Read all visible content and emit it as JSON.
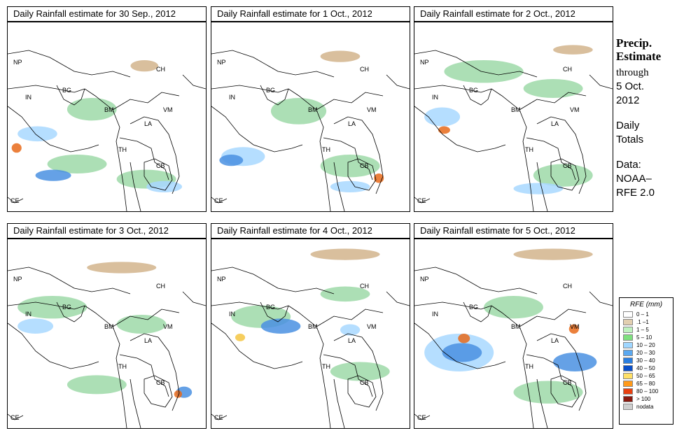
{
  "panels": [
    {
      "title": "Daily Rainfall estimate for  30 Sep., 2012",
      "blobs": [
        [
          "#a8d8ff",
          0.05,
          0.55,
          0.2,
          0.08
        ],
        [
          "#9ed9a8",
          0.3,
          0.4,
          0.25,
          0.12
        ],
        [
          "#d2b48c",
          0.62,
          0.2,
          0.14,
          0.06
        ],
        [
          "#9ed9a8",
          0.2,
          0.7,
          0.3,
          0.1
        ],
        [
          "#4a90e2",
          0.14,
          0.78,
          0.18,
          0.06
        ],
        [
          "#e86a1a",
          0.02,
          0.64,
          0.05,
          0.05
        ],
        [
          "#9ed9a8",
          0.55,
          0.78,
          0.3,
          0.1
        ],
        [
          "#a8d8ff",
          0.7,
          0.84,
          0.18,
          0.06
        ]
      ]
    },
    {
      "title": "Daily Rainfall estimate for  1 Oct., 2012",
      "blobs": [
        [
          "#a8d8ff",
          0.05,
          0.66,
          0.22,
          0.1
        ],
        [
          "#9ed9a8",
          0.3,
          0.4,
          0.28,
          0.14
        ],
        [
          "#d2b48c",
          0.55,
          0.15,
          0.2,
          0.06
        ],
        [
          "#9ed9a8",
          0.55,
          0.7,
          0.3,
          0.12
        ],
        [
          "#4a90e2",
          0.04,
          0.7,
          0.12,
          0.06
        ],
        [
          "#e86a1a",
          0.82,
          0.8,
          0.05,
          0.05
        ],
        [
          "#a8d8ff",
          0.6,
          0.84,
          0.2,
          0.06
        ]
      ]
    },
    {
      "title": "Daily Rainfall estimate for  2 Oct., 2012",
      "blobs": [
        [
          "#9ed9a8",
          0.15,
          0.2,
          0.4,
          0.12
        ],
        [
          "#a8d8ff",
          0.05,
          0.45,
          0.18,
          0.1
        ],
        [
          "#e86a1a",
          0.12,
          0.55,
          0.06,
          0.04
        ],
        [
          "#9ed9a8",
          0.55,
          0.3,
          0.3,
          0.1
        ],
        [
          "#d2b48c",
          0.7,
          0.12,
          0.2,
          0.05
        ],
        [
          "#9ed9a8",
          0.6,
          0.75,
          0.3,
          0.12
        ],
        [
          "#a8d8ff",
          0.5,
          0.85,
          0.25,
          0.06
        ]
      ]
    },
    {
      "title": "Daily Rainfall estimate for  3 Oct., 2012",
      "blobs": [
        [
          "#9ed9a8",
          0.05,
          0.3,
          0.35,
          0.12
        ],
        [
          "#a8d8ff",
          0.05,
          0.42,
          0.18,
          0.08
        ],
        [
          "#d2b48c",
          0.4,
          0.12,
          0.35,
          0.06
        ],
        [
          "#9ed9a8",
          0.55,
          0.4,
          0.25,
          0.1
        ],
        [
          "#4a90e2",
          0.85,
          0.78,
          0.08,
          0.06
        ],
        [
          "#e86a1a",
          0.84,
          0.8,
          0.04,
          0.04
        ],
        [
          "#9ed9a8",
          0.3,
          0.72,
          0.3,
          0.1
        ]
      ]
    },
    {
      "title": "Daily Rainfall estimate for  4 Oct., 2012",
      "blobs": [
        [
          "#9ed9a8",
          0.1,
          0.35,
          0.3,
          0.12
        ],
        [
          "#4a90e2",
          0.25,
          0.42,
          0.2,
          0.08
        ],
        [
          "#f5c542",
          0.12,
          0.5,
          0.05,
          0.04
        ],
        [
          "#9ed9a8",
          0.55,
          0.25,
          0.25,
          0.08
        ],
        [
          "#d2b48c",
          0.5,
          0.05,
          0.35,
          0.06
        ],
        [
          "#9ed9a8",
          0.6,
          0.65,
          0.3,
          0.1
        ],
        [
          "#a8d8ff",
          0.65,
          0.45,
          0.1,
          0.06
        ]
      ]
    },
    {
      "title": "Daily Rainfall estimate for  5 Oct., 2012",
      "blobs": [
        [
          "#a8d8ff",
          0.05,
          0.5,
          0.35,
          0.2
        ],
        [
          "#4a90e2",
          0.14,
          0.55,
          0.2,
          0.1
        ],
        [
          "#e86a1a",
          0.22,
          0.5,
          0.06,
          0.05
        ],
        [
          "#9ed9a8",
          0.35,
          0.3,
          0.3,
          0.12
        ],
        [
          "#4a90e2",
          0.7,
          0.6,
          0.22,
          0.1
        ],
        [
          "#e86a1a",
          0.78,
          0.45,
          0.05,
          0.05
        ],
        [
          "#9ed9a8",
          0.5,
          0.75,
          0.35,
          0.12
        ],
        [
          "#d2b48c",
          0.5,
          0.05,
          0.4,
          0.06
        ]
      ]
    }
  ],
  "country_labels": [
    "NP",
    "CH",
    "IN",
    "BG",
    "BM",
    "VM",
    "LA",
    "TH",
    "CB",
    "CE"
  ],
  "sidebar": {
    "line1": "Precip.",
    "line2": "Estimate",
    "line3": "through",
    "line4": "5 Oct.",
    "line5": "2012",
    "line6": "Daily",
    "line7": "Totals",
    "line8": "Data:",
    "line9": "NOAA–",
    "line10": "RFE 2.0"
  },
  "legend": {
    "title": "RFE (mm)",
    "items": [
      {
        "label": "0 – 1",
        "color": "#ffffff"
      },
      {
        "label": ".1 –1",
        "color": "#e2cfb0"
      },
      {
        "label": "1 – 5",
        "color": "#bff2bf"
      },
      {
        "label": "5 – 10",
        "color": "#7ee07e"
      },
      {
        "label": "10 – 20",
        "color": "#9fd6ff"
      },
      {
        "label": "20 – 30",
        "color": "#5aa8f0"
      },
      {
        "label": "30 – 40",
        "color": "#2a7ee0"
      },
      {
        "label": "40 – 50",
        "color": "#0a4fc8"
      },
      {
        "label": "50 – 65",
        "color": "#ffe066"
      },
      {
        "label": "65 – 80",
        "color": "#ff9a1a"
      },
      {
        "label": "80 – 100",
        "color": "#e84010"
      },
      {
        "label": "> 100",
        "color": "#8a1a10"
      },
      {
        "label": "nodata",
        "color": "#cfcfcf"
      }
    ]
  }
}
